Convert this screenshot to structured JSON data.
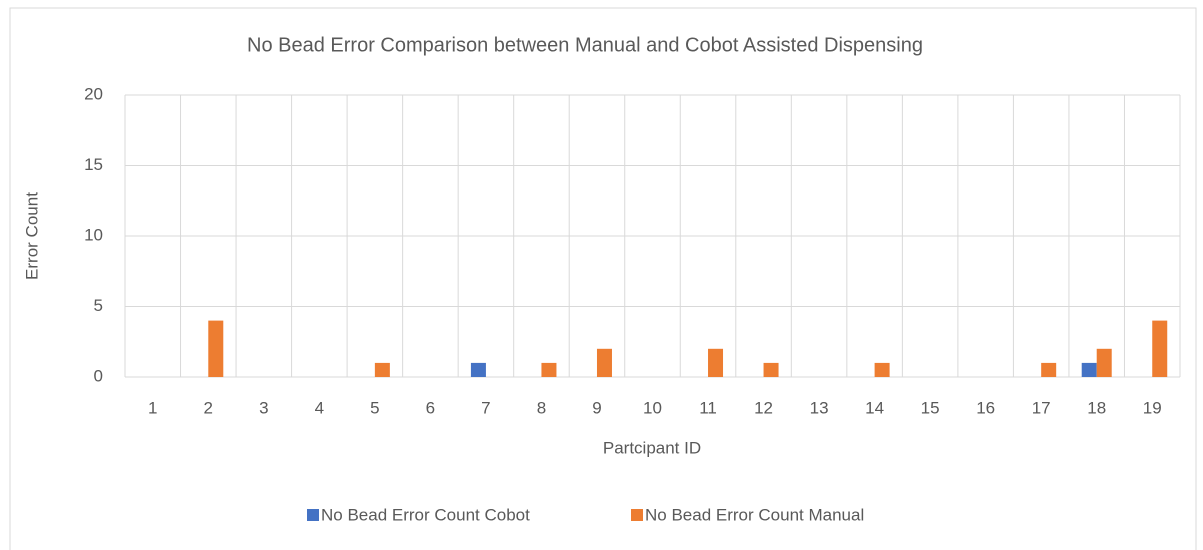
{
  "chart_data": {
    "type": "bar",
    "title": "No Bead Error Comparison between Manual and Cobot Assisted Dispensing",
    "xlabel": "Partcipant ID",
    "ylabel": "Error Count",
    "categories": [
      "1",
      "2",
      "3",
      "4",
      "5",
      "6",
      "7",
      "8",
      "9",
      "10",
      "11",
      "12",
      "13",
      "14",
      "15",
      "16",
      "17",
      "18",
      "19"
    ],
    "series": [
      {
        "name": "No Bead Error Count Cobot",
        "color": "#4472c4",
        "values": [
          0,
          0,
          0,
          0,
          0,
          0,
          1,
          0,
          0,
          0,
          0,
          0,
          0,
          0,
          0,
          0,
          0,
          1,
          0
        ]
      },
      {
        "name": "No Bead Error Count Manual",
        "color": "#ed7d31",
        "values": [
          0,
          4,
          0,
          0,
          1,
          0,
          0,
          1,
          2,
          0,
          2,
          1,
          0,
          1,
          0,
          0,
          1,
          2,
          4
        ]
      }
    ],
    "ylim": [
      0,
      20
    ],
    "yticks": [
      0,
      5,
      10,
      15,
      20
    ],
    "grid": true,
    "legend": "bottom"
  }
}
